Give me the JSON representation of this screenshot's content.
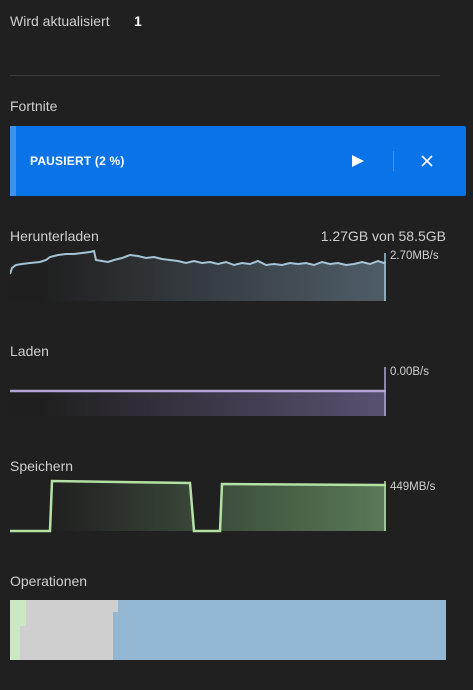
{
  "header": {
    "updating_label": "Wird aktualisiert",
    "updating_count": "1"
  },
  "game": {
    "title": "Fortnite",
    "status": "PAUSIERT (2 %)"
  },
  "sections": {
    "download": {
      "label": "Herunterladen",
      "total": "1.27GB von 58.5GB",
      "rate": "2.70MB/s"
    },
    "load": {
      "label": "Laden",
      "rate": "0.00B/s"
    },
    "save": {
      "label": "Speichern",
      "rate": "449MB/s"
    },
    "operations": {
      "label": "Operationen"
    }
  },
  "colors": {
    "accent": "#0a73e8",
    "download_line": "#a4c4d6",
    "load_line": "#b0a4d6",
    "save_line": "#b4e0a4",
    "ops_blue": "#93b6d2",
    "ops_gray": "#cfcfcf",
    "ops_green": "#c9e8c3"
  },
  "icons": {
    "play": "play-icon",
    "close": "close-icon"
  }
}
